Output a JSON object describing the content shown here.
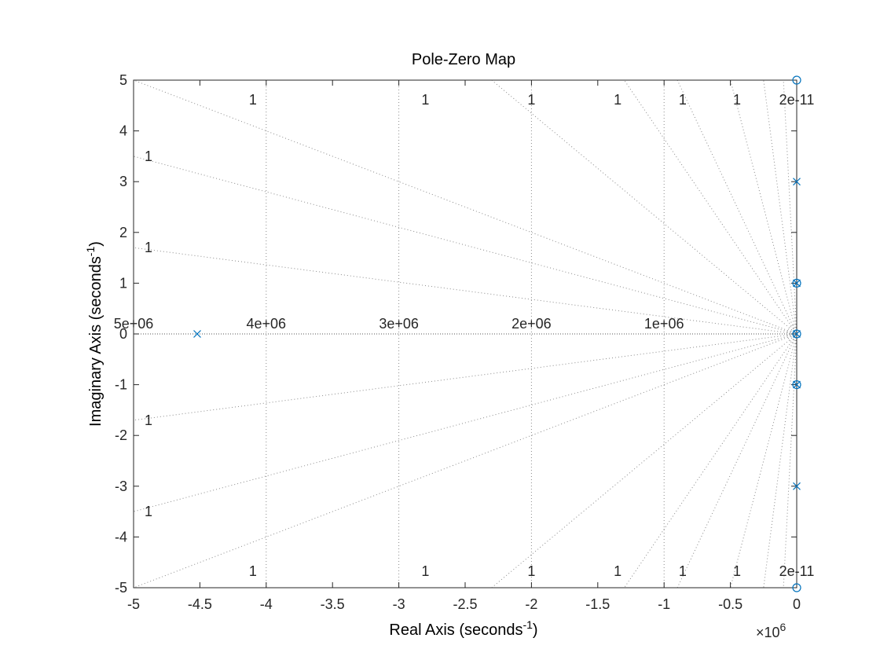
{
  "chart_data": {
    "type": "scatter",
    "title": "Pole-Zero Map",
    "xlabel_main": "Real Axis (seconds",
    "xlabel_sup": "-1",
    "xlabel_close": ")",
    "ylabel_main": "Imaginary Axis (seconds",
    "ylabel_sup": "-1",
    "ylabel_close": ")",
    "x_multiplier_base": "×10",
    "x_multiplier_exp": "6",
    "xlim": [
      -5,
      0
    ],
    "ylim": [
      -5,
      5
    ],
    "xticks": [
      -5,
      -4.5,
      -4,
      -3.5,
      -3,
      -2.5,
      -2,
      -1.5,
      -1,
      -0.5,
      0
    ],
    "xtick_labels": [
      "-5",
      "-4.5",
      "-4",
      "-3.5",
      "-3",
      "-2.5",
      "-2",
      "-1.5",
      "-1",
      "-0.5",
      "0"
    ],
    "yticks": [
      5,
      4,
      3,
      2,
      1,
      0,
      -1,
      -2,
      -3,
      -4,
      -5
    ],
    "ytick_labels": [
      "5",
      "4",
      "3",
      "2",
      "1",
      "0",
      "-1",
      "-2",
      "-3",
      "-4",
      "-5"
    ],
    "grid": true,
    "marker_color": "#0072BD",
    "poles": [
      {
        "x": -4.52,
        "y": 0
      },
      {
        "x": 0,
        "y": 3
      },
      {
        "x": 0,
        "y": -3
      },
      {
        "x": 0,
        "y": 1
      },
      {
        "x": 0,
        "y": -1
      },
      {
        "x": 0,
        "y": 0
      }
    ],
    "zeros": [
      {
        "x": 0,
        "y": 5
      },
      {
        "x": 0,
        "y": -5
      },
      {
        "x": 0,
        "y": 1
      },
      {
        "x": 0,
        "y": -1
      },
      {
        "x": 0,
        "y": 0
      }
    ],
    "damping_label_text": "1",
    "damping_labels_top": [
      -4.1,
      -2.8,
      -2.0,
      -1.35,
      -0.86,
      -0.45
    ],
    "damping_labels_left": [
      3.5,
      1.7,
      -1.7,
      -3.5
    ],
    "damping_labels_bottom": [
      -4.1,
      -2.8,
      -2.0,
      -1.35,
      -0.86,
      -0.45
    ],
    "edge_label_top": "2e-11",
    "edge_label_bottom": "2e-11",
    "frequency_labels": [
      {
        "x": -5,
        "text": "5e+06"
      },
      {
        "x": -4,
        "text": "4e+06"
      },
      {
        "x": -3,
        "text": "3e+06"
      },
      {
        "x": -2,
        "text": "2e+06"
      },
      {
        "x": -1,
        "text": "1e+06"
      }
    ],
    "damping_rays_top": [
      -5,
      -2.3,
      -1.3,
      -0.9,
      -0.5,
      -0.25,
      -0.1
    ],
    "damping_rays_left": [
      3.5,
      1.7
    ],
    "damping_rays_bottom": [
      -5,
      -2.3,
      -1.3,
      -0.9,
      -0.5,
      -0.25,
      -0.1
    ],
    "vertical_grid_x": [
      -4,
      -3,
      -2,
      -1
    ]
  }
}
